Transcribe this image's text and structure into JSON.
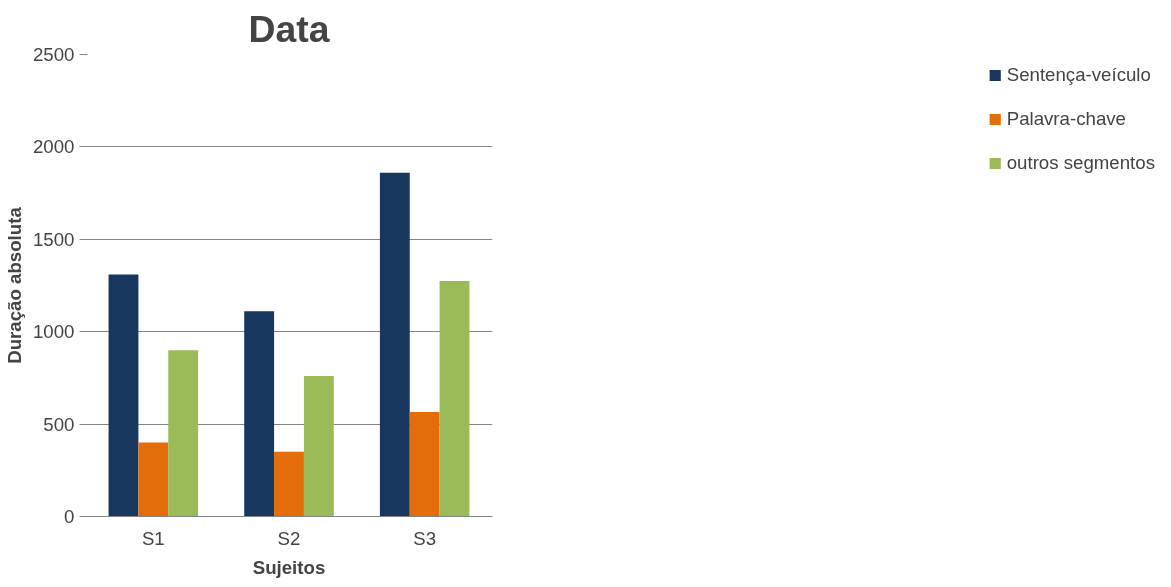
{
  "chart_data": {
    "type": "bar",
    "title": "Data",
    "xlabel": "Sujeitos",
    "ylabel": "Duração absoluta",
    "categories": [
      "S1",
      "S2",
      "S3"
    ],
    "series": [
      {
        "name": "Sentença-veículo",
        "color": "#17375e",
        "values": [
          1310,
          1110,
          1860
        ]
      },
      {
        "name": "Palavra-chave",
        "color": "#e46c0a",
        "values": [
          400,
          350,
          565
        ]
      },
      {
        "name": "outros segmentos",
        "color": "#9bbb59",
        "values": [
          900,
          760,
          1275
        ]
      }
    ],
    "ylim": [
      0,
      2500
    ],
    "yticks": [
      0,
      500,
      1000,
      1500,
      2000,
      2500
    ],
    "grid": "y",
    "legend": "right"
  }
}
